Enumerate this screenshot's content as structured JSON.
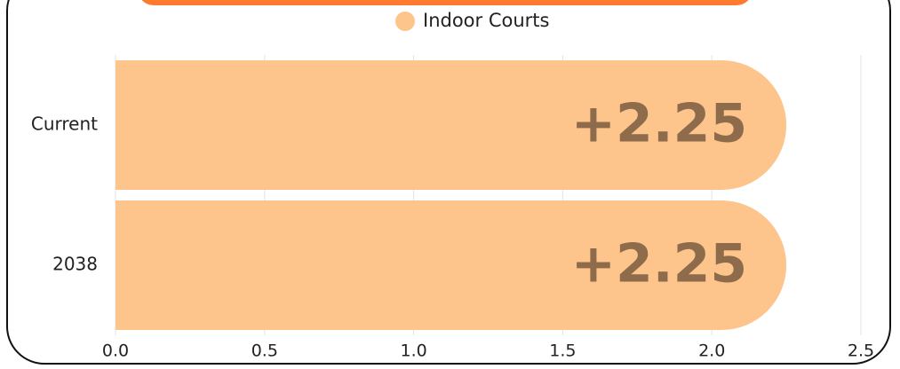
{
  "chart_data": {
    "type": "bar",
    "orientation": "horizontal",
    "categories": [
      "Current",
      "2038"
    ],
    "series": [
      {
        "name": "Indoor Courts",
        "color": "#fdc48b",
        "values": [
          2.25,
          2.25
        ],
        "value_labels": [
          "+2.25",
          "+2.25"
        ]
      }
    ],
    "xlim": [
      0,
      2.5
    ],
    "xticks": [
      {
        "value": 0,
        "label": "0.0"
      },
      0.5,
      {
        "value": 1,
        "label": "1.0"
      },
      1.5,
      {
        "value": 2,
        "label": "2.0"
      },
      2.5
    ],
    "grid": true,
    "legend": "top"
  }
}
